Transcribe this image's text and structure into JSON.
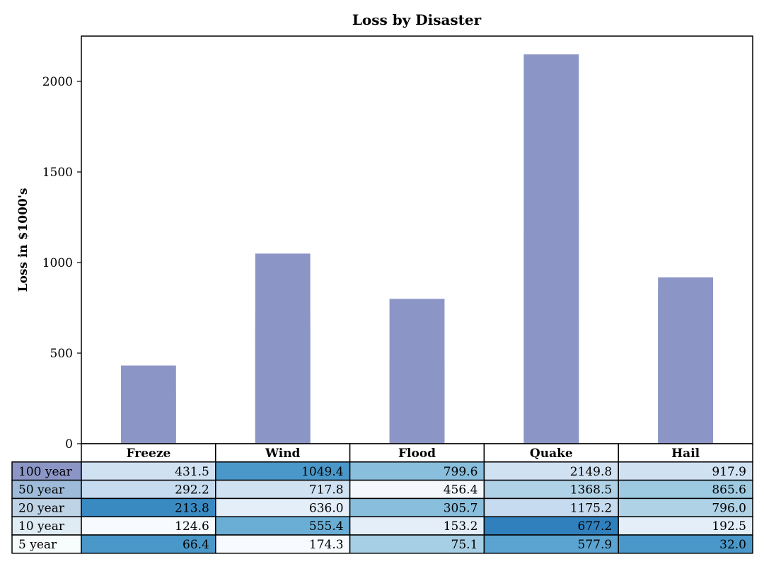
{
  "chart_data": {
    "type": "bar",
    "title": "Loss by Disaster",
    "ylabel": "Loss in $1000's",
    "xlabel": "",
    "ylim": [
      0,
      2250
    ],
    "yticks": [
      0,
      500,
      1000,
      1500,
      2000
    ],
    "categories": [
      "Freeze",
      "Wind",
      "Flood",
      "Quake",
      "Hail"
    ],
    "series": [
      {
        "name": "100 year",
        "values": [
          "431.5",
          "1049.4",
          "799.6",
          "2149.8",
          "917.9"
        ]
      },
      {
        "name": "50 year",
        "values": [
          "292.2",
          "717.8",
          "456.4",
          "1368.5",
          "865.6"
        ]
      },
      {
        "name": "20 year",
        "values": [
          "213.8",
          "636.0",
          "305.7",
          "1175.2",
          "796.0"
        ]
      },
      {
        "name": "10 year",
        "values": [
          "124.6",
          "555.4",
          "153.2",
          "677.2",
          "192.5"
        ]
      },
      {
        "name": "5 year",
        "values": [
          "66.4",
          "174.3",
          "75.1",
          "577.9",
          "32.0"
        ]
      }
    ],
    "series_colors": [
      "#8c96c6",
      "#9ebcda",
      "#bfd3e6",
      "#e0ecf4",
      "#f7fcfd"
    ],
    "cell_colors": [
      [
        "#d0e1f2",
        "#4a98c9",
        "#89bedc",
        "#d0e1f2",
        "#d0e1f2"
      ],
      [
        "#c6dbef",
        "#d0e1f2",
        "#f4f8fd",
        "#b0d2e7",
        "#9ecae1"
      ],
      [
        "#3a8ac2",
        "#e3eef9",
        "#89bedc",
        "#c6dbef",
        "#b0d2e7"
      ],
      [
        "#f7fbff",
        "#6aaed6",
        "#e3eef9",
        "#3080bd",
        "#e3eef9"
      ],
      [
        "#4a98c9",
        "#f7fbff",
        "#a6cee4",
        "#5ba3d0",
        "#4a98c9"
      ]
    ],
    "table": true,
    "grid": false
  }
}
